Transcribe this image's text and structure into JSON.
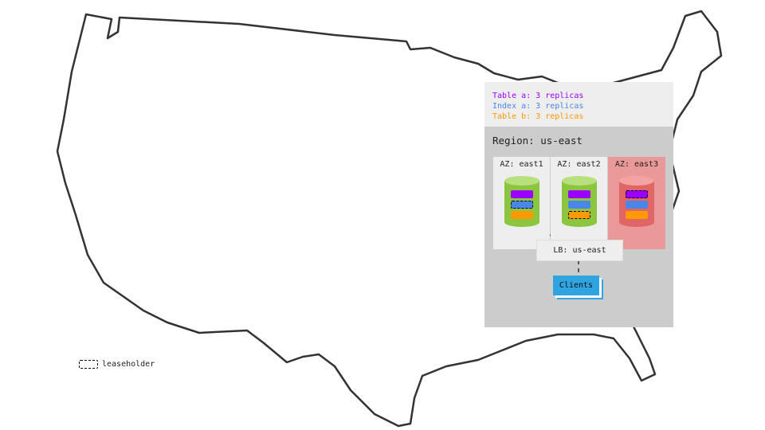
{
  "legend": {
    "items": [
      {
        "text": "Table a: 3 replicas",
        "color": "#9b00ff"
      },
      {
        "text": "Index a: 3 replicas",
        "color": "#4a86e8"
      },
      {
        "text": "Table b: 3 replicas",
        "color": "#ff9900"
      }
    ]
  },
  "region": {
    "title": "Region: us-east",
    "azs": [
      {
        "label": "AZ: east1",
        "status": "healthy",
        "leaseholder": "Index a"
      },
      {
        "label": "AZ: east2",
        "status": "healthy",
        "leaseholder": "Table b"
      },
      {
        "label": "AZ: east3",
        "status": "failed",
        "leaseholder": "Table a"
      }
    ],
    "lb": "LB: us-east",
    "clients": "Clients"
  },
  "leaseholder_legend": "leaseholder",
  "colors": {
    "healthy": "#8cc63f",
    "failed": "#e06666",
    "failed_bg": "#ea9999"
  }
}
